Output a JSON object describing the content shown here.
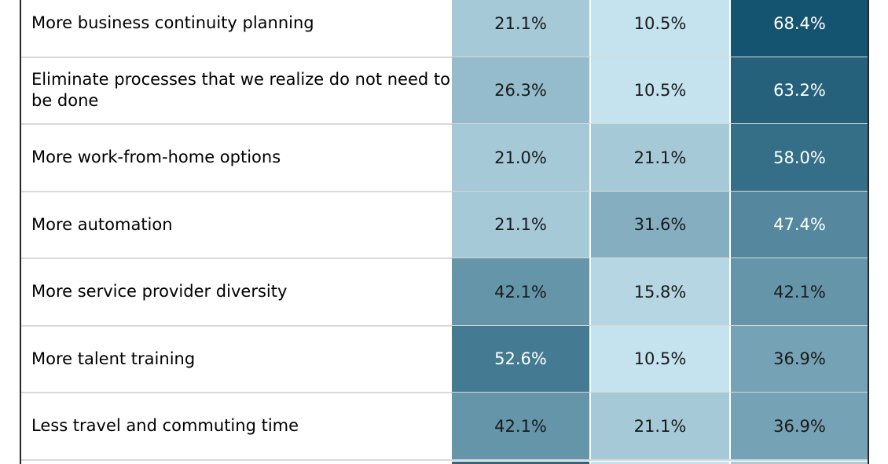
{
  "chart_data": {
    "type": "heatmap",
    "rows": [
      "More business continuity planning",
      "Eliminate processes that we realize do not need to be done",
      "More work-from-home options",
      "More automation",
      "More service provider diversity",
      "More talent training",
      "Less travel and commuting time"
    ],
    "columns": [
      "",
      "",
      ""
    ],
    "values": [
      [
        21.1,
        10.5,
        68.4
      ],
      [
        26.3,
        10.5,
        63.2
      ],
      [
        21.0,
        21.1,
        58.0
      ],
      [
        21.1,
        31.6,
        47.4
      ],
      [
        42.1,
        15.8,
        42.1
      ],
      [
        52.6,
        10.5,
        36.9
      ],
      [
        42.1,
        21.1,
        36.9
      ]
    ],
    "value_labels": [
      [
        "21.1%",
        "10.5%",
        "68.4%"
      ],
      [
        "26.3%",
        "10.5%",
        "63.2%"
      ],
      [
        "21.0%",
        "21.1%",
        "58.0%"
      ],
      [
        "21.1%",
        "31.6%",
        "47.4%"
      ],
      [
        "42.1%",
        "15.8%",
        "42.1%"
      ],
      [
        "52.6%",
        "10.5%",
        "36.9%"
      ],
      [
        "42.1%",
        "21.1%",
        "36.9%"
      ]
    ],
    "color_scale": {
      "low": "#c5e3ee",
      "high": "#155470"
    }
  }
}
